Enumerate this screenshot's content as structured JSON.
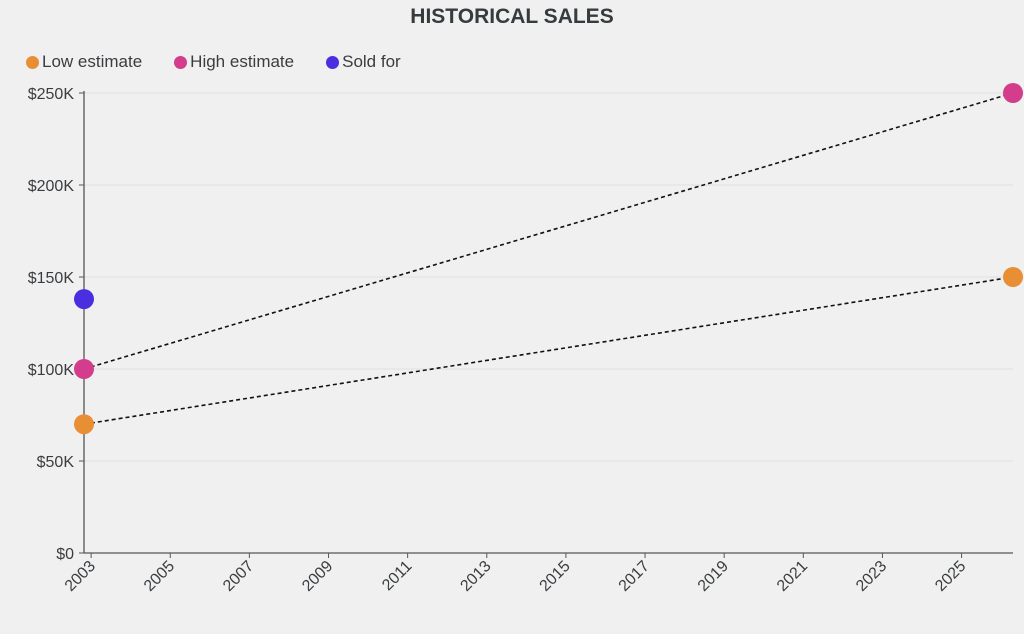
{
  "chart_data": {
    "type": "scatter",
    "title": "HISTORICAL SALES",
    "xlabel": "",
    "ylabel": "",
    "xlim": [
      2002.82,
      2026.3
    ],
    "ylim": [
      0,
      250000
    ],
    "grid": true,
    "legend_position": "top-left",
    "x_ticks": [
      "2003",
      "2005",
      "2007",
      "2009",
      "2011",
      "2013",
      "2015",
      "2017",
      "2019",
      "2021",
      "2023",
      "2025"
    ],
    "y_ticks": [
      {
        "value": 0,
        "label": "$0"
      },
      {
        "value": 50000,
        "label": "$50K"
      },
      {
        "value": 100000,
        "label": "$100K"
      },
      {
        "value": 150000,
        "label": "$150K"
      },
      {
        "value": 200000,
        "label": "$200K"
      },
      {
        "value": 250000,
        "label": "$250K"
      }
    ],
    "series": [
      {
        "name": "Low estimate",
        "color": "#e88e35",
        "points": [
          {
            "x": 2002.82,
            "y": 70000
          },
          {
            "x": 2026.3,
            "y": 150000
          }
        ],
        "connector": "dashed"
      },
      {
        "name": "High estimate",
        "color": "#d33d8c",
        "points": [
          {
            "x": 2002.82,
            "y": 100000
          },
          {
            "x": 2026.3,
            "y": 250000
          }
        ],
        "connector": "dashed"
      },
      {
        "name": "Sold for",
        "color": "#4a2fe0",
        "points": [
          {
            "x": 2002.82,
            "y": 138000
          }
        ],
        "connector": "none"
      }
    ]
  }
}
